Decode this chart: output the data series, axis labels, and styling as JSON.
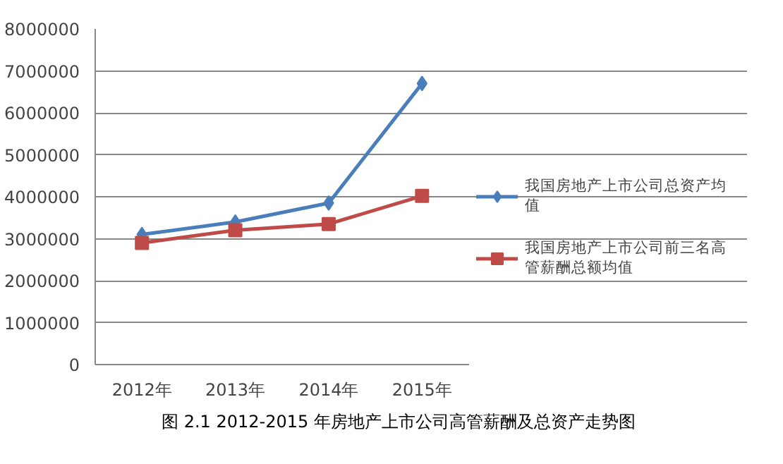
{
  "chart_data": {
    "type": "line",
    "categories": [
      "2012年",
      "2013年",
      "2014年",
      "2015年"
    ],
    "series": [
      {
        "name": "我国房地产上市公司总资产均值",
        "color": "#4a7ebb",
        "marker": "diamond",
        "values": [
          3100000,
          3400000,
          3850000,
          6700000
        ]
      },
      {
        "name": "我国房地产上市公司前三名高管薪酬总额均值",
        "color": "#be4b48",
        "marker": "square",
        "values": [
          2900000,
          3200000,
          3350000,
          4020000
        ]
      }
    ],
    "ylim": [
      0,
      8000000
    ],
    "yticks": [
      0,
      1000000,
      2000000,
      3000000,
      4000000,
      5000000,
      6000000,
      7000000,
      8000000
    ],
    "grid": "y",
    "legend": "right",
    "line_style": "solid",
    "annotations": [
      "图 2.1 2012-2015 年房地产上市公司高管薪酬及总资产走势图"
    ]
  }
}
